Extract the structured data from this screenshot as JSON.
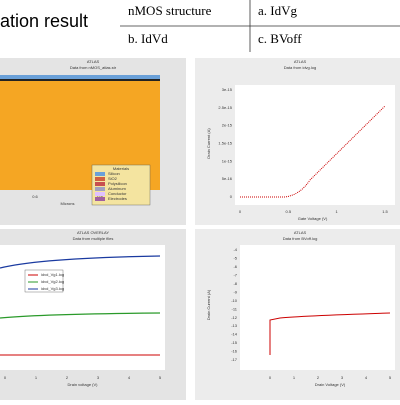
{
  "header": {
    "title": "ation result"
  },
  "table": {
    "rows": [
      [
        "nMOS structure",
        "a. IdVg"
      ],
      [
        "b. IdVd",
        "c. BVoff"
      ]
    ]
  },
  "panels": [
    {
      "title": "ATLAS",
      "subtitle": "Data from nMOS_atlas.str",
      "xlabel": "Microns",
      "xticks": [
        "0.6",
        "0.8"
      ],
      "legend_title": "Materials",
      "legend": [
        "Silicon",
        "SiO2",
        "Polysilicon",
        "Aluminum",
        "Conductor",
        "Electrodes"
      ]
    },
    {
      "title": "ATLAS",
      "subtitle": "Data from idvg.log",
      "xlabel": "Gate Voltage (V)",
      "ylabel": "Drain Current (A)",
      "xticks": [
        "0",
        "0.5",
        "1",
        "1.5"
      ],
      "yticks": [
        "3e-15",
        "2.5e-15",
        "2e-15",
        "1.5e-15",
        "1e-15",
        "5e-16",
        "0"
      ]
    },
    {
      "title": "ATLAS OVERLAY",
      "subtitle": "Data from multiple files",
      "xlabel": "Drain voltage (V)",
      "xticks": [
        "0",
        "1",
        "2",
        "3",
        "4",
        "5"
      ],
      "legend": [
        "idvd_Vg1.log",
        "idvd_Vg2.log",
        "idvd_Vg3.log"
      ]
    },
    {
      "title": "ATLAS",
      "subtitle": "Data from BVoff.log",
      "xlabel": "Drain Voltage (V)",
      "ylabel": "Drain Current (A)",
      "xticks": [
        "0",
        "1",
        "2",
        "3",
        "4",
        "5"
      ],
      "yticks": [
        "-4",
        "-5",
        "-6",
        "-7",
        "-8",
        "-9",
        "-10",
        "-11",
        "-12",
        "-13",
        "-14",
        "-15",
        "-16",
        "-17"
      ]
    }
  ]
}
